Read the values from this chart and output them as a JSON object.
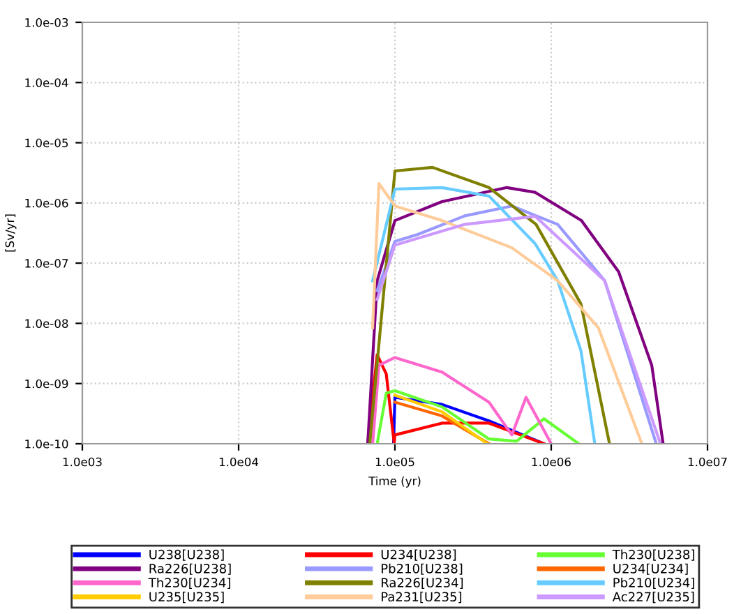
{
  "chart_data": {
    "type": "line",
    "xlabel": "Time (yr)",
    "ylabel": "[Sv/yr]",
    "log": "xy",
    "grid": true,
    "legend": "bottom",
    "line_style": "solid",
    "marker": "none",
    "xlim": [
      1000,
      10000000
    ],
    "ylim": [
      1e-10,
      0.001
    ],
    "xticks": [
      {
        "value": 1000,
        "label": "1.0e03"
      },
      {
        "value": 10000,
        "label": "1.0e04"
      },
      {
        "value": 100000,
        "label": "1.0e05"
      },
      {
        "value": 1000000,
        "label": "1.0e06"
      },
      {
        "value": 10000000,
        "label": "1.0e07"
      }
    ],
    "yticks": [
      {
        "value": 1e-10,
        "label": "1.0e-10"
      },
      {
        "value": 1e-09,
        "label": "1.0e-09"
      },
      {
        "value": 1e-08,
        "label": "1.0e-08"
      },
      {
        "value": 1e-07,
        "label": "1.0e-07"
      },
      {
        "value": 1e-06,
        "label": "1.0e-06"
      },
      {
        "value": 1e-05,
        "label": "1.0e-05"
      },
      {
        "value": 0.0001,
        "label": "1.0e-04"
      },
      {
        "value": 0.001,
        "label": "1.0e-03"
      }
    ],
    "series": [
      {
        "name": "U238[U238]",
        "color": "#0000ff",
        "x": [
          98000,
          100000,
          200000,
          400000,
          900000
        ],
        "values": [
          1e-10,
          5.9e-10,
          4.5e-10,
          2.4e-10,
          1e-10
        ]
      },
      {
        "name": "U234[U238]",
        "color": "#ff0000",
        "x": [
          67000,
          77000,
          88000,
          99000,
          100000,
          200000,
          400000,
          900000
        ],
        "values": [
          1e-10,
          3e-09,
          1.45e-09,
          1e-10,
          1.4e-10,
          2.2e-10,
          2.2e-10,
          1e-10
        ]
      },
      {
        "name": "Th230[U238]",
        "color": "#66ff33",
        "x": [
          77000,
          88000,
          100000,
          200000,
          400000,
          600000,
          900000,
          1500000
        ],
        "values": [
          1e-10,
          6.9e-10,
          7.6e-10,
          4.1e-10,
          1.2e-10,
          1.1e-10,
          2.6e-10,
          1e-10
        ]
      },
      {
        "name": "Ra226[U238]",
        "color": "#800080",
        "x": [
          67000,
          77000,
          100000,
          200000,
          520000,
          790000,
          1560000,
          2700000,
          4400000,
          5200000
        ],
        "values": [
          1e-10,
          5.1e-08,
          5.1e-07,
          1.05e-06,
          1.8e-06,
          1.5e-06,
          5.1e-07,
          7.2e-08,
          2e-09,
          1e-10
        ]
      },
      {
        "name": "Pb210[U238]",
        "color": "#9999ff",
        "x": [
          77000,
          100000,
          140000,
          280000,
          560000,
          1100000,
          2200000,
          4700000
        ],
        "values": [
          3.5e-08,
          2.3e-07,
          3e-07,
          6.1e-07,
          8.9e-07,
          4.4e-07,
          5.1e-08,
          1e-10
        ]
      },
      {
        "name": "U234[U234]",
        "color": "#ff6600",
        "x": [
          100000,
          200000,
          400000
        ],
        "values": [
          4.9e-10,
          2.9e-10,
          1e-10
        ]
      },
      {
        "name": "Th230[U234]",
        "color": "#ff66cc",
        "x": [
          72000,
          79000,
          100000,
          200000,
          400000,
          560000,
          690000,
          1000000
        ],
        "values": [
          1e-10,
          2e-09,
          2.7e-09,
          1.55e-09,
          4.9e-10,
          1.4e-10,
          5.9e-10,
          1e-10
        ]
      },
      {
        "name": "Ra226[U234]",
        "color": "#808000",
        "x": [
          69000,
          100000,
          174000,
          400000,
          800000,
          1550000,
          2360000
        ],
        "values": [
          1e-10,
          3.4e-06,
          3.9e-06,
          1.8e-06,
          4.4e-07,
          2.1e-08,
          1e-10
        ]
      },
      {
        "name": "Pb210[U234]",
        "color": "#66ccff",
        "x": [
          72000,
          100000,
          200000,
          400000,
          790000,
          1100000,
          1550000,
          1900000
        ],
        "values": [
          5.1e-08,
          1.7e-06,
          1.8e-06,
          1.3e-06,
          2.1e-07,
          5.1e-08,
          3.5e-09,
          1e-10
        ]
      },
      {
        "name": "U235[U235]",
        "color": "#ffcc00",
        "x": [
          100000,
          200000,
          390000
        ],
        "values": [
          6.4e-10,
          3.4e-10,
          1e-10
        ]
      },
      {
        "name": "Pa231[U235]",
        "color": "#ffcc99",
        "x": [
          72000,
          79000,
          100000,
          200000,
          560000,
          1100000,
          2000000,
          3800000
        ],
        "values": [
          8.5e-09,
          2.1e-06,
          8.9e-07,
          5.1e-07,
          1.8e-07,
          5.1e-08,
          8.5e-09,
          1e-10
        ]
      },
      {
        "name": "Ac227[U235]",
        "color": "#cc99ff",
        "x": [
          77000,
          100000,
          280000,
          790000,
          2200000,
          5000000
        ],
        "values": [
          2.5e-08,
          2e-07,
          4.4e-07,
          6e-07,
          5.1e-08,
          1e-10
        ]
      }
    ]
  }
}
